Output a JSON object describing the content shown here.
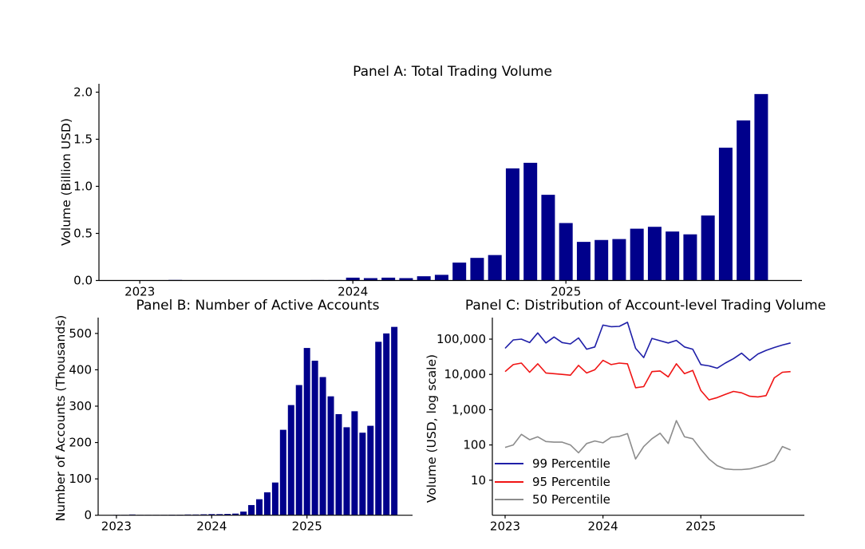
{
  "figure": {
    "background": "#ffffff",
    "text_color": "#000000",
    "axis_color": "#000000"
  },
  "colors": {
    "bar": "#00008B",
    "p99": "#1F1FA8",
    "p95": "#F01414",
    "p50": "#8C8C8C"
  },
  "months": [
    "2023-01",
    "2023-02",
    "2023-03",
    "2023-04",
    "2023-05",
    "2023-06",
    "2023-07",
    "2023-08",
    "2023-09",
    "2023-10",
    "2023-11",
    "2023-12",
    "2024-01",
    "2024-02",
    "2024-03",
    "2024-04",
    "2024-05",
    "2024-06",
    "2024-07",
    "2024-08",
    "2024-09",
    "2024-10",
    "2024-11",
    "2024-12",
    "2025-01",
    "2025-02",
    "2025-03",
    "2025-04",
    "2025-05",
    "2025-06",
    "2025-07",
    "2025-08",
    "2025-09",
    "2025-10",
    "2025-11",
    "2025-12"
  ],
  "chart_data": [
    {
      "panel": "A",
      "type": "bar",
      "title": "Panel A: Total Trading Volume",
      "ylabel": "Volume (Billion USD)",
      "ylim": [
        0,
        2.09
      ],
      "grid": false,
      "yticks": [
        {
          "value": 0.0,
          "label": "0.0"
        },
        {
          "value": 0.5,
          "label": "0.5"
        },
        {
          "value": 1.0,
          "label": "1.0"
        },
        {
          "value": 1.5,
          "label": "1.5"
        },
        {
          "value": 2.0,
          "label": "2.0"
        }
      ],
      "xticks": [
        {
          "month_index": 0,
          "label": "2023"
        },
        {
          "month_index": 12,
          "label": "2024"
        },
        {
          "month_index": 24,
          "label": "2025"
        }
      ],
      "values": [
        0.002,
        0.003,
        0.006,
        0.003,
        0.003,
        0.004,
        0.003,
        0.004,
        0.004,
        0.004,
        0.005,
        0.005,
        0.03,
        0.025,
        0.03,
        0.025,
        0.045,
        0.06,
        0.19,
        0.24,
        0.27,
        1.19,
        1.25,
        0.91,
        0.61,
        0.41,
        0.43,
        0.44,
        0.55,
        0.57,
        0.52,
        0.49,
        0.69,
        1.41,
        1.7,
        1.98
      ]
    },
    {
      "panel": "B",
      "type": "bar",
      "title": "Panel B: Number of Active Accounts",
      "ylabel": "Number of Accounts (Thousands)",
      "ylim": [
        0,
        543
      ],
      "grid": false,
      "yticks": [
        {
          "value": 0,
          "label": "0"
        },
        {
          "value": 100,
          "label": "100"
        },
        {
          "value": 200,
          "label": "200"
        },
        {
          "value": 300,
          "label": "300"
        },
        {
          "value": 400,
          "label": "400"
        },
        {
          "value": 500,
          "label": "500"
        }
      ],
      "xticks": [
        {
          "month_index": 0,
          "label": "2023"
        },
        {
          "month_index": 12,
          "label": "2024"
        },
        {
          "month_index": 24,
          "label": "2025"
        }
      ],
      "values": [
        1,
        1,
        2,
        1,
        1,
        1,
        1,
        1.5,
        1.5,
        2,
        2,
        2.5,
        3,
        3,
        3.5,
        4.5,
        10,
        28,
        44,
        63,
        90,
        235,
        303,
        358,
        460,
        425,
        380,
        327,
        278,
        242,
        286,
        227,
        246,
        477,
        500,
        518
      ]
    },
    {
      "panel": "C",
      "type": "line",
      "title": "Panel C: Distribution of Account-level Trading Volume",
      "ylabel": "Volume (USD, log scale)",
      "yscale": "log",
      "ylim": [
        1,
        400000
      ],
      "grid": false,
      "legend_position": "lower left",
      "yticks": [
        {
          "value": 10,
          "label": "10"
        },
        {
          "value": 100,
          "label": "100"
        },
        {
          "value": 1000,
          "label": "1,000"
        },
        {
          "value": 10000,
          "label": "10,000"
        },
        {
          "value": 100000,
          "label": "100,000"
        }
      ],
      "xticks": [
        {
          "month_index": 0,
          "label": "2023"
        },
        {
          "month_index": 12,
          "label": "2024"
        },
        {
          "month_index": 24,
          "label": "2025"
        }
      ],
      "series": [
        {
          "name": "99 Percentile",
          "color": "p99",
          "values": [
            55000,
            95000,
            100000,
            80000,
            150000,
            78000,
            115000,
            80000,
            73000,
            108000,
            52000,
            60000,
            250000,
            225000,
            230000,
            300000,
            55000,
            30000,
            105000,
            90000,
            78000,
            92000,
            60000,
            52000,
            19000,
            17500,
            15000,
            21000,
            28000,
            40000,
            25000,
            38000,
            48000,
            58000,
            68000,
            78000
          ]
        },
        {
          "name": "95 Percentile",
          "color": "p95",
          "values": [
            12000,
            19000,
            21000,
            11500,
            20000,
            11000,
            10500,
            10000,
            9500,
            18000,
            11000,
            13500,
            25000,
            19000,
            21000,
            20000,
            4200,
            4500,
            12000,
            12500,
            8500,
            20000,
            10500,
            13000,
            3500,
            1900,
            2200,
            2700,
            3300,
            3000,
            2400,
            2300,
            2500,
            8000,
            11500,
            12000
          ]
        },
        {
          "name": "50 Percentile",
          "color": "p50",
          "values": [
            85,
            100,
            200,
            140,
            170,
            125,
            120,
            120,
            100,
            60,
            110,
            130,
            115,
            165,
            175,
            210,
            40,
            90,
            150,
            215,
            110,
            490,
            170,
            150,
            75,
            40,
            26,
            21,
            20,
            20,
            21,
            24,
            28,
            36,
            90,
            72
          ]
        }
      ]
    }
  ]
}
